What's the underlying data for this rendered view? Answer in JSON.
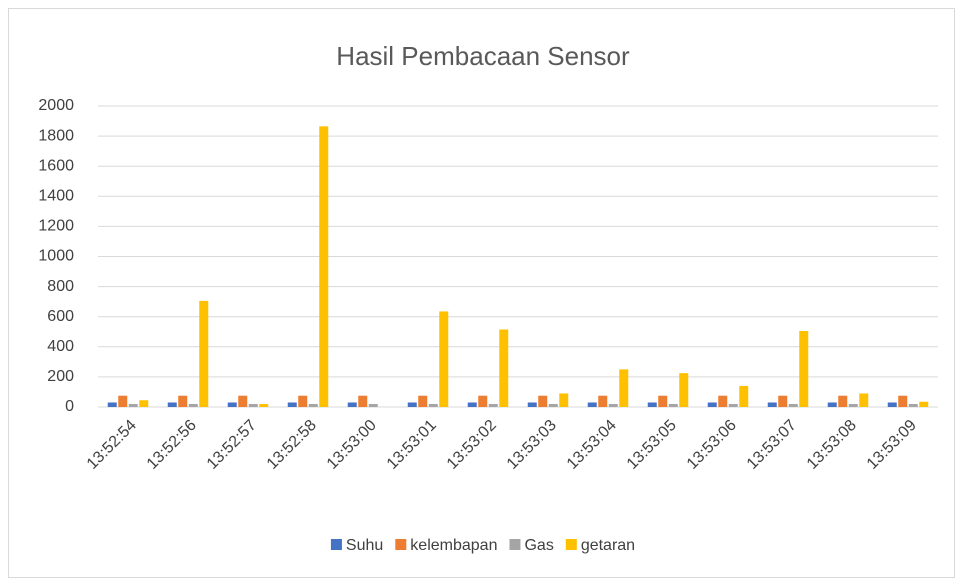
{
  "chart_data": {
    "type": "bar",
    "title": "Hasil Pembacaan Sensor",
    "categories": [
      "13:52:54",
      "13:52:56",
      "13:52:57",
      "13:52:58",
      "13:53:00",
      "13:53:01",
      "13:53:02",
      "13:53:03",
      "13:53:04",
      "13:53:05",
      "13:53:06",
      "13:53:07",
      "13:53:08",
      "13:53:09"
    ],
    "series": [
      {
        "name": "Suhu",
        "color": "#4472c4",
        "values": [
          30,
          30,
          30,
          30,
          30,
          30,
          30,
          30,
          30,
          30,
          30,
          30,
          30,
          30
        ]
      },
      {
        "name": "kelembapan",
        "color": "#ed7d31",
        "values": [
          75,
          75,
          75,
          75,
          75,
          75,
          75,
          75,
          75,
          75,
          75,
          75,
          75,
          75
        ]
      },
      {
        "name": "Gas",
        "color": "#a5a5a5",
        "values": [
          20,
          20,
          20,
          20,
          20,
          20,
          20,
          20,
          20,
          20,
          20,
          20,
          20,
          20
        ]
      },
      {
        "name": "getaran",
        "color": "#ffc000",
        "values": [
          45,
          705,
          20,
          1865,
          0,
          635,
          515,
          90,
          250,
          225,
          140,
          505,
          90,
          35
        ]
      }
    ],
    "ylim": [
      0,
      2000
    ],
    "yticks": [
      0,
      200,
      400,
      600,
      800,
      1000,
      1200,
      1400,
      1600,
      1800,
      2000
    ],
    "grid": true,
    "legend": "bottom"
  }
}
